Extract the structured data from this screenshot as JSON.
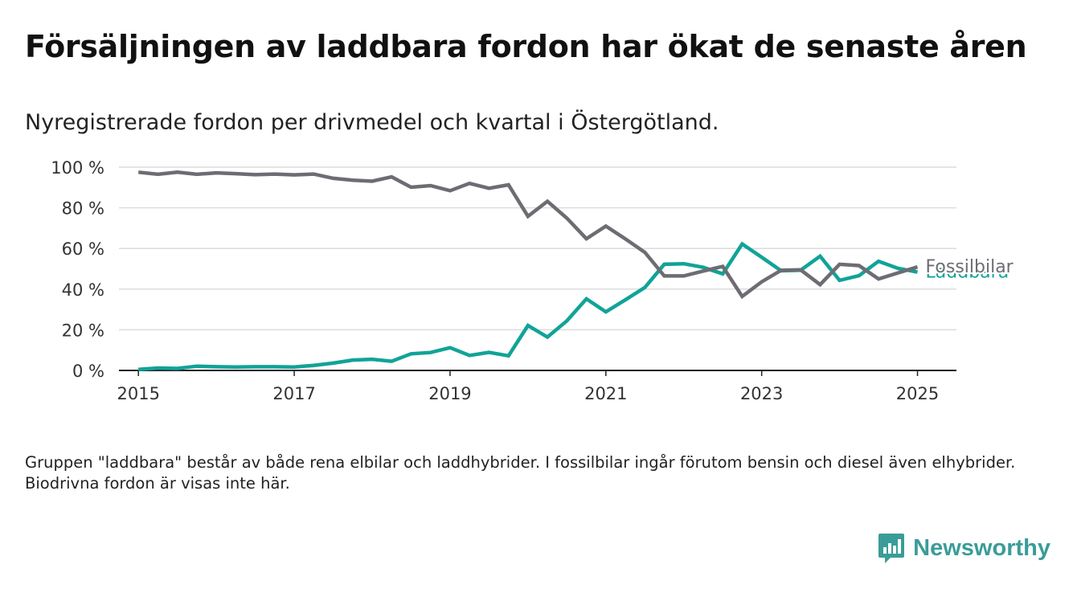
{
  "title": "Försäljningen av laddbara fordon har ökat de senaste åren",
  "subtitle": "Nyregistrerade fordon per drivmedel och kvartal i Östergötland.",
  "footnote": "Gruppen \"laddbara\" består av både rena elbilar och laddhybrider. I fossilbilar ingår förutom bensin och diesel även elhybrider. Biodrivna fordon är visas inte här.",
  "brand": {
    "name": "Newsworthy",
    "icon": "newsworthy-logo-icon",
    "color": "#3a9c98"
  },
  "chart_data": {
    "type": "line",
    "title": "",
    "xlabel": "",
    "ylabel": "",
    "x_range": [
      2014.75,
      2025.5
    ],
    "ylim": [
      0,
      100
    ],
    "y_ticks": [
      0,
      20,
      40,
      60,
      80,
      100
    ],
    "y_tick_labels": [
      "0 %",
      "20 %",
      "40 %",
      "60 %",
      "80 %",
      "100 %"
    ],
    "x_ticks": [
      2015,
      2017,
      2019,
      2021,
      2023,
      2025
    ],
    "x_tick_labels": [
      "2015",
      "2017",
      "2019",
      "2021",
      "2023",
      "2025"
    ],
    "grid": true,
    "legend": "direct labels at line ends",
    "x": [
      "2015Q1",
      "2015Q2",
      "2015Q3",
      "2015Q4",
      "2016Q1",
      "2016Q2",
      "2016Q3",
      "2016Q4",
      "2017Q1",
      "2017Q2",
      "2017Q3",
      "2017Q4",
      "2018Q1",
      "2018Q2",
      "2018Q3",
      "2018Q4",
      "2019Q1",
      "2019Q2",
      "2019Q3",
      "2019Q4",
      "2020Q1",
      "2020Q2",
      "2020Q3",
      "2020Q4",
      "2021Q1",
      "2021Q2",
      "2021Q3",
      "2021Q4",
      "2022Q1",
      "2022Q2",
      "2022Q3",
      "2022Q4",
      "2023Q1",
      "2023Q2",
      "2023Q3",
      "2023Q4",
      "2024Q1",
      "2024Q2",
      "2024Q3",
      "2024Q4",
      "2025Q1"
    ],
    "series": [
      {
        "name": "Fossilbilar",
        "color": "#6e6c73",
        "values": [
          97.5,
          96.5,
          97.5,
          96.5,
          97.2,
          96.8,
          96.3,
          96.6,
          96.2,
          96.6,
          94.5,
          93.6,
          93.1,
          95.2,
          90.1,
          90.9,
          88.4,
          92.0,
          89.6,
          91.3,
          75.8,
          83.2,
          74.9,
          64.8,
          71.0,
          64.7,
          58.1,
          46.5,
          46.5,
          48.9,
          51.2,
          36.4,
          43.6,
          49.3,
          49.5,
          42.2,
          52.2,
          51.6,
          45.0,
          48.0,
          50.9
        ]
      },
      {
        "name": "Laddbara",
        "color": "#11a398",
        "values": [
          0.5,
          1.2,
          1.0,
          2.1,
          1.8,
          1.7,
          1.8,
          1.8,
          1.7,
          2.5,
          3.6,
          5.1,
          5.5,
          4.5,
          8.2,
          8.8,
          11.2,
          7.4,
          8.9,
          7.2,
          22.1,
          16.4,
          24.4,
          35.2,
          28.8,
          34.7,
          40.8,
          52.2,
          52.5,
          50.7,
          47.5,
          62.2,
          55.7,
          49.0,
          49.3,
          56.2,
          44.3,
          46.6,
          53.7,
          50.2,
          48.4
        ]
      }
    ]
  }
}
